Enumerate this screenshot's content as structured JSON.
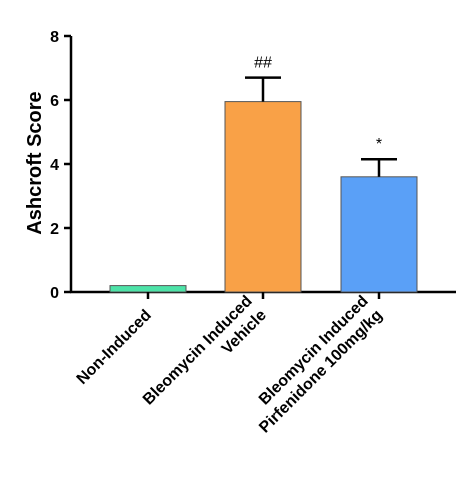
{
  "chart_data": {
    "type": "bar",
    "ylabel": "Ashcroft Score",
    "ylim": [
      0,
      8
    ],
    "yticks": [
      0,
      2,
      4,
      6,
      8
    ],
    "categories": [
      [
        "Non-Induced"
      ],
      [
        "Bleomycin Induced",
        "Vehicle"
      ],
      [
        "Bleomycin Induced",
        "Pirfenidone 100mg/kg"
      ]
    ],
    "values": [
      0.2,
      5.95,
      3.6
    ],
    "errors": [
      0,
      0.75,
      0.55
    ],
    "colors": [
      "#4de3a8",
      "#f9a147",
      "#5aa0f7"
    ],
    "annotations": [
      "",
      "##",
      "*"
    ],
    "grid": false,
    "legend": false
  }
}
